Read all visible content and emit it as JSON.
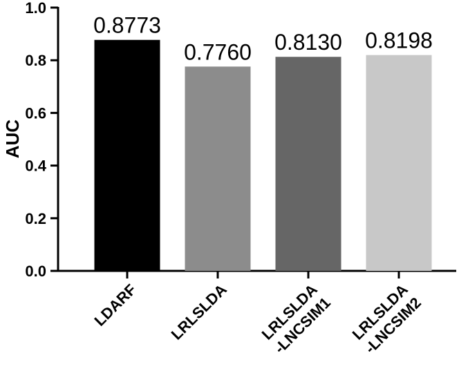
{
  "chart_data": {
    "type": "bar",
    "title": "",
    "xlabel": "",
    "ylabel": "AUC",
    "ylim": [
      0,
      1.0
    ],
    "yticks": [
      "0.0",
      "0.2",
      "0.4",
      "0.6",
      "0.8",
      "1.0"
    ],
    "grid": false,
    "categories": [
      [
        "LDARF"
      ],
      [
        "LRLSLDA"
      ],
      [
        "LRLSLDA",
        "-LNCSIM1"
      ],
      [
        "LRLSLDA",
        "-LNCSIM2"
      ]
    ],
    "values": [
      0.8773,
      0.776,
      0.813,
      0.8198
    ],
    "data_labels": [
      "0.8773",
      "0.7760",
      "0.8130",
      "0.8198"
    ],
    "colors": [
      "#000000",
      "#8c8c8c",
      "#666666",
      "#c8c8c8"
    ]
  }
}
